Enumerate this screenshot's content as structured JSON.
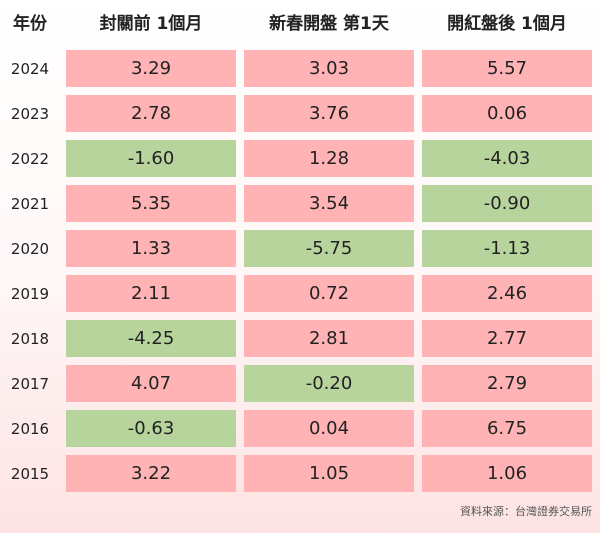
{
  "headers": {
    "year": "年份",
    "col1": "封關前 1個月",
    "col2": "新春開盤 第1天",
    "col3": "開紅盤後 1個月"
  },
  "colors": {
    "positive": "#ffb3b5",
    "negative": "#b8d49d"
  },
  "chart_data": {
    "type": "table",
    "columns": [
      "年份",
      "封關前 1個月",
      "新春開盤 第1天",
      "開紅盤後 1個月"
    ],
    "rows": [
      {
        "year": "2024",
        "values": [
          "3.29",
          "3.03",
          "5.57"
        ]
      },
      {
        "year": "2023",
        "values": [
          "2.78",
          "3.76",
          "0.06"
        ]
      },
      {
        "year": "2022",
        "values": [
          "-1.60",
          "1.28",
          "-4.03"
        ]
      },
      {
        "year": "2021",
        "values": [
          "5.35",
          "3.54",
          "-0.90"
        ]
      },
      {
        "year": "2020",
        "values": [
          "1.33",
          "-5.75",
          "-1.13"
        ]
      },
      {
        "year": "2019",
        "values": [
          "2.11",
          "0.72",
          "2.46"
        ]
      },
      {
        "year": "2018",
        "values": [
          "-4.25",
          "2.81",
          "2.77"
        ]
      },
      {
        "year": "2017",
        "values": [
          "4.07",
          "-0.20",
          "2.79"
        ]
      },
      {
        "year": "2016",
        "values": [
          "-0.63",
          "0.04",
          "6.75"
        ]
      },
      {
        "year": "2015",
        "values": [
          "3.22",
          "1.05",
          "1.06"
        ]
      }
    ]
  },
  "source": "資料來源：台灣證券交易所"
}
